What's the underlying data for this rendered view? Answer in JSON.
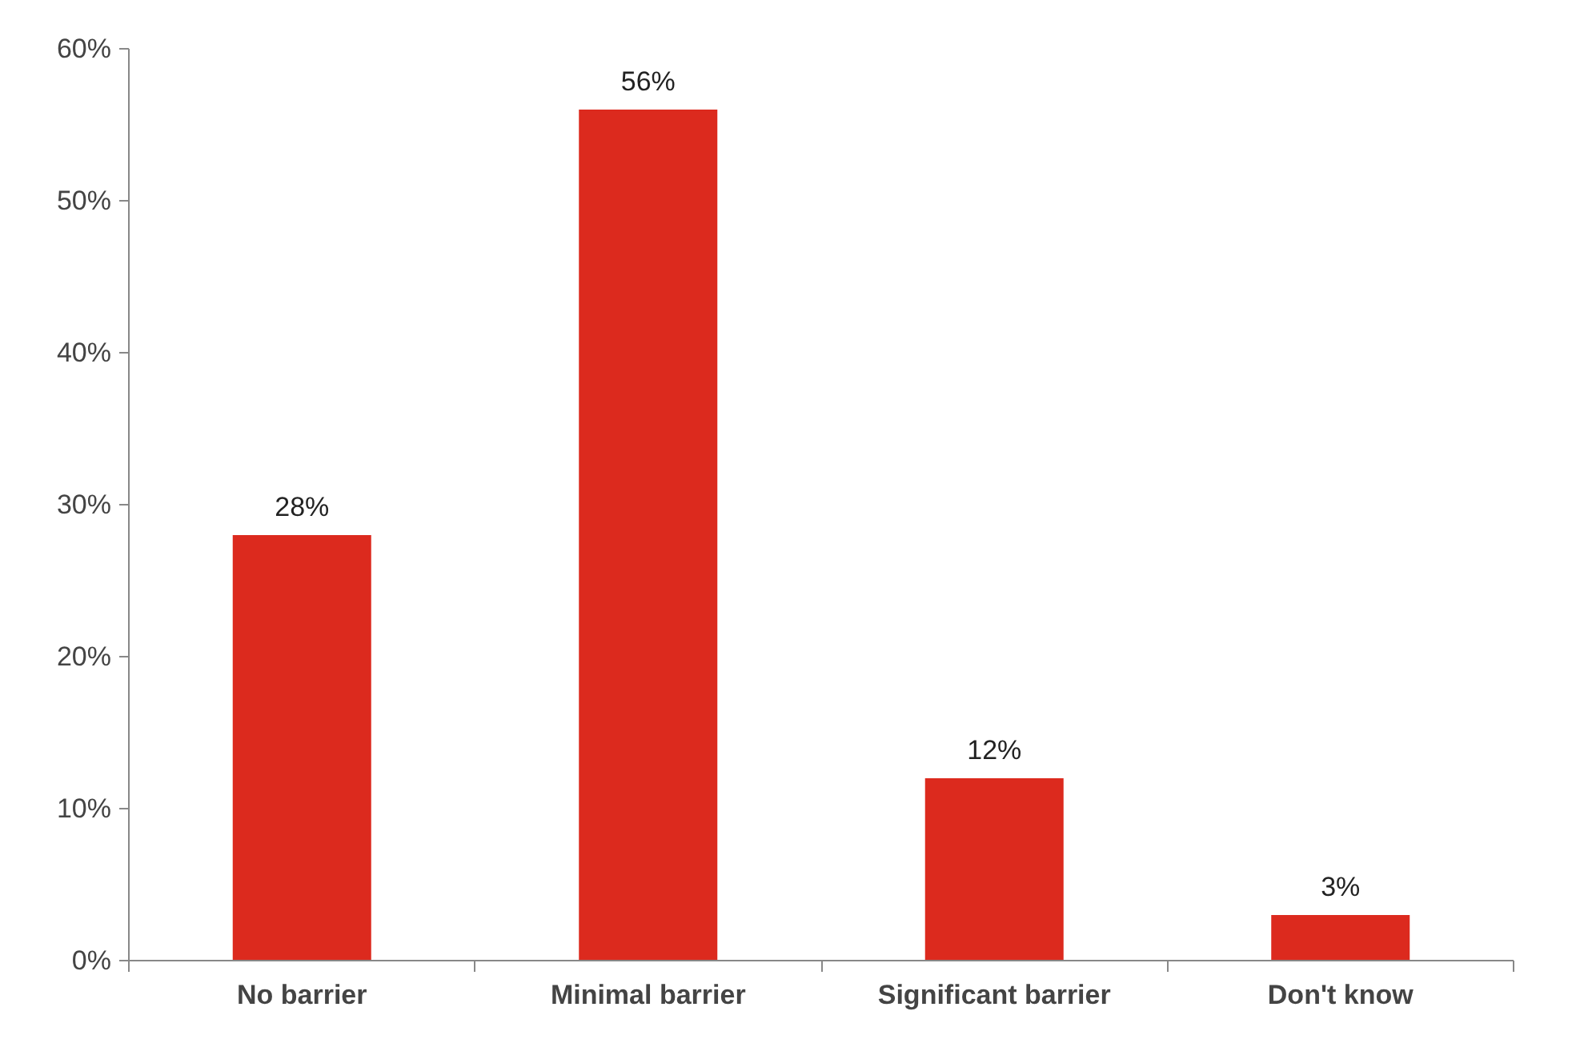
{
  "chart_data": {
    "type": "bar",
    "categories": [
      "No barrier",
      "Minimal barrier",
      "Significant barrier",
      "Don't know"
    ],
    "values": [
      28,
      56,
      12,
      3
    ],
    "value_labels": [
      "28%",
      "56%",
      "12%",
      "3%"
    ],
    "color": "#dc2a1e",
    "ylim": [
      0,
      60
    ],
    "yticks": [
      {
        "value": 0,
        "label": "0%"
      },
      {
        "value": 10,
        "label": "10%"
      },
      {
        "value": 20,
        "label": "20%"
      },
      {
        "value": 30,
        "label": "30%"
      },
      {
        "value": 40,
        "label": "40%"
      },
      {
        "value": 50,
        "label": "50%"
      },
      {
        "value": 60,
        "label": "60%"
      }
    ],
    "grid": false
  }
}
